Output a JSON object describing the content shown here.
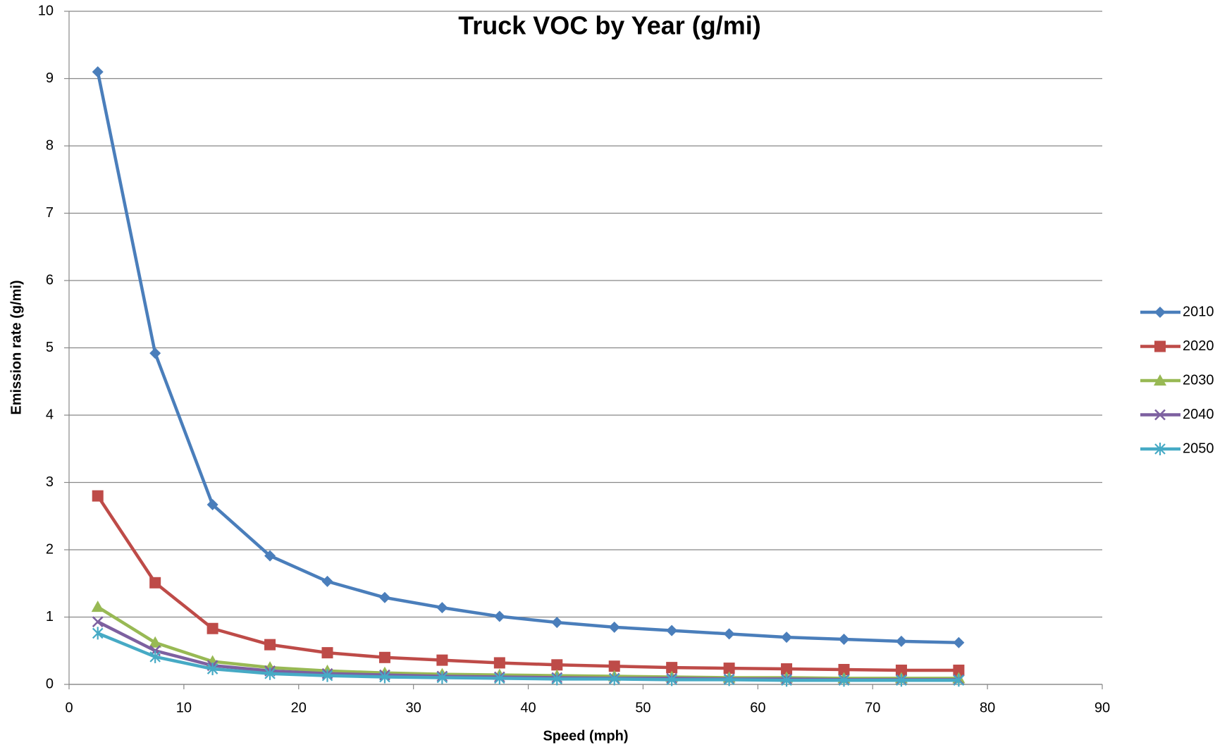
{
  "chart_data": {
    "type": "line",
    "title": "Truck VOC by Year (g/mi)",
    "xlabel": "Speed (mph)",
    "ylabel": "Emission rate (g/mi)",
    "x": [
      2.5,
      7.5,
      12.5,
      17.5,
      22.5,
      27.5,
      32.5,
      37.5,
      42.5,
      47.5,
      52.5,
      57.5,
      62.5,
      67.5,
      72.5,
      77.5
    ],
    "series": [
      {
        "name": "2010",
        "color": "#4a7ebb",
        "marker": "diamond",
        "values": [
          9.1,
          4.92,
          2.67,
          1.91,
          1.53,
          1.29,
          1.14,
          1.01,
          0.92,
          0.85,
          0.8,
          0.75,
          0.7,
          0.67,
          0.64,
          0.62
        ]
      },
      {
        "name": "2020",
        "color": "#be4b48",
        "marker": "square",
        "values": [
          2.8,
          1.51,
          0.83,
          0.59,
          0.47,
          0.4,
          0.36,
          0.32,
          0.29,
          0.27,
          0.25,
          0.24,
          0.23,
          0.22,
          0.21,
          0.21
        ]
      },
      {
        "name": "2030",
        "color": "#98b954",
        "marker": "triangle",
        "values": [
          1.15,
          0.62,
          0.34,
          0.25,
          0.2,
          0.17,
          0.15,
          0.14,
          0.13,
          0.12,
          0.11,
          0.1,
          0.1,
          0.09,
          0.09,
          0.09
        ]
      },
      {
        "name": "2040",
        "color": "#7d60a0",
        "marker": "x",
        "values": [
          0.93,
          0.5,
          0.28,
          0.2,
          0.16,
          0.14,
          0.12,
          0.11,
          0.1,
          0.09,
          0.09,
          0.08,
          0.08,
          0.07,
          0.07,
          0.07
        ]
      },
      {
        "name": "2050",
        "color": "#46aac5",
        "marker": "star",
        "values": [
          0.76,
          0.41,
          0.23,
          0.16,
          0.13,
          0.11,
          0.1,
          0.09,
          0.08,
          0.08,
          0.07,
          0.07,
          0.06,
          0.06,
          0.06,
          0.06
        ]
      }
    ],
    "xlim": [
      0,
      90
    ],
    "xticks": [
      0,
      10,
      20,
      30,
      40,
      50,
      60,
      70,
      80,
      90
    ],
    "ylim": [
      0,
      10
    ],
    "yticks": [
      0,
      1,
      2,
      3,
      4,
      5,
      6,
      7,
      8,
      9,
      10
    ],
    "grid": true,
    "legend": "right"
  }
}
